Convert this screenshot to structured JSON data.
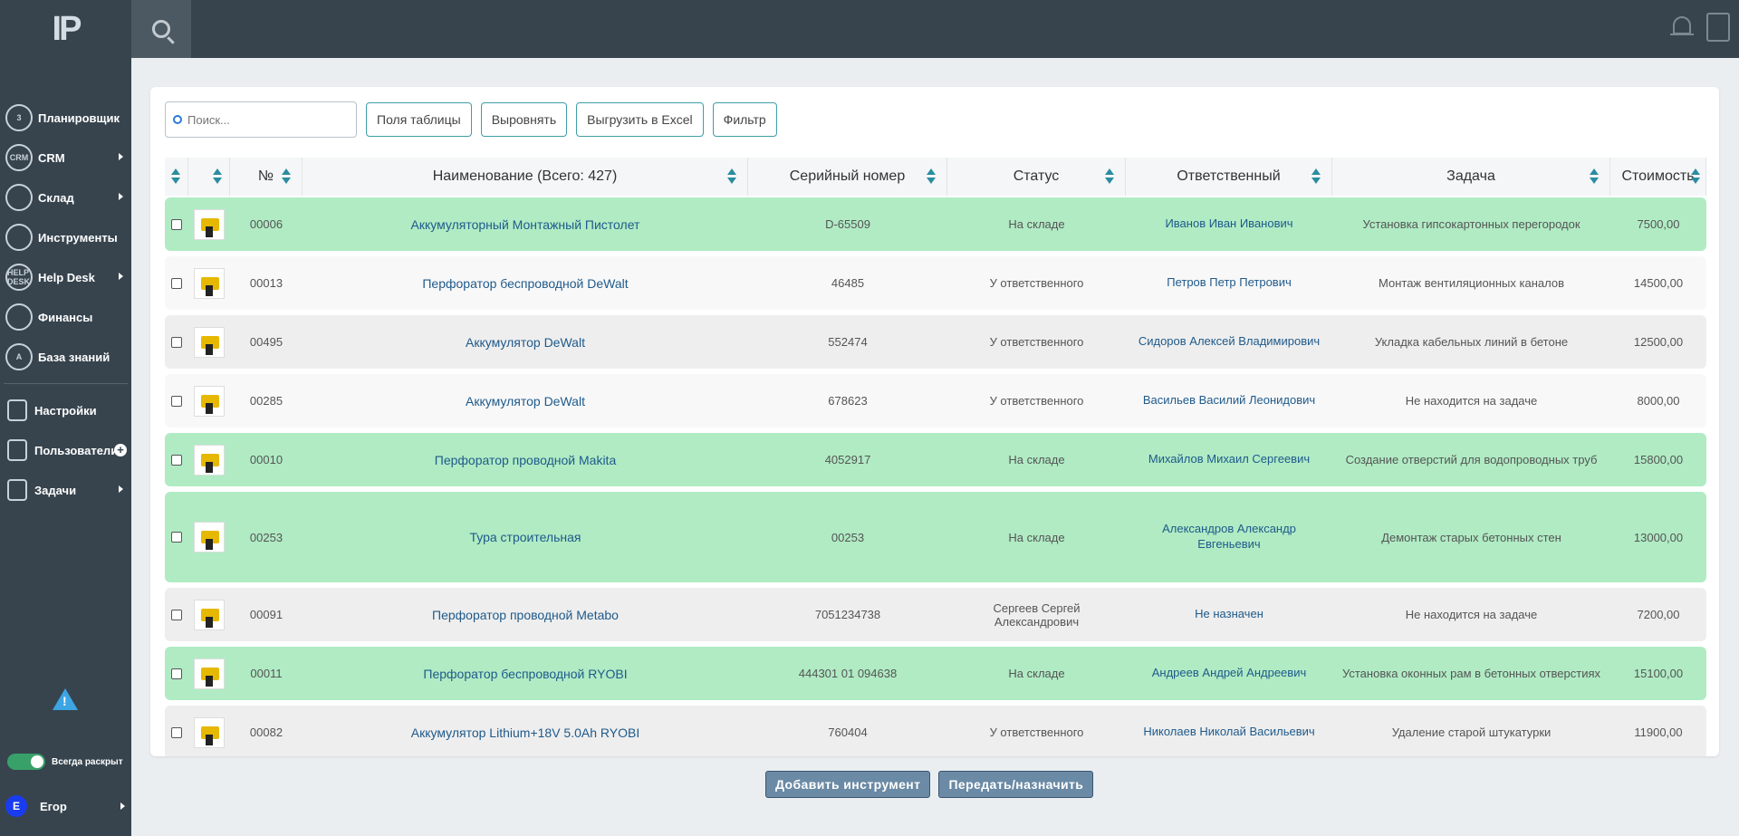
{
  "logo": "IP",
  "sidebar": {
    "items": [
      {
        "label": "Планировщик",
        "icon": "calendar-icon",
        "icon_text": "3",
        "arrow": false
      },
      {
        "label": "CRM",
        "icon": "crm-icon",
        "icon_text": "CRM",
        "arrow": true
      },
      {
        "label": "Склад",
        "icon": "warehouse-icon",
        "icon_text": "",
        "arrow": true
      },
      {
        "label": "Инструменты",
        "icon": "wrench-icon",
        "icon_text": "",
        "arrow": false
      },
      {
        "label": "Help Desk",
        "icon": "helpdesk-icon",
        "icon_text": "HELP DESK",
        "arrow": true
      },
      {
        "label": "Финансы",
        "icon": "finance-icon",
        "icon_text": "",
        "arrow": false
      },
      {
        "label": "База знаний",
        "icon": "knowledge-icon",
        "icon_text": "A",
        "arrow": false
      }
    ],
    "items2": [
      {
        "label": "Настройки",
        "icon": "gear-icon"
      },
      {
        "label": "Пользователи",
        "icon": "users-icon"
      },
      {
        "label": "Задачи",
        "icon": "tasks-icon"
      }
    ],
    "always_expand_label": "Всегда раскрыт",
    "user_initial": "Е",
    "user_name": "Егор"
  },
  "toolbar": {
    "search_placeholder": "Поиск...",
    "buttons": [
      "Поля таблицы",
      "Выровнять",
      "Выгрузить в Excel",
      "Фильтр"
    ]
  },
  "table": {
    "headers": [
      "",
      "",
      "№",
      "Наименование (Всего: 427)",
      "Серийный номер",
      "Статус",
      "Ответственный",
      "Задача",
      "Стоимость"
    ],
    "rows": [
      {
        "num": "00006",
        "name": "Аккумуляторный Монтажный Пистолет",
        "serial": "D-65509",
        "status": "На складе",
        "responsible": "Иванов Иван Иванович",
        "task": "Установка гипсокартонных перегородок",
        "cost": "7500,00",
        "color": "green"
      },
      {
        "num": "00013",
        "name": "Перфоратор беспроводной DeWalt",
        "serial": "46485",
        "status": "У ответственного",
        "responsible": "Петров Петр Петрович",
        "task": "Монтаж вентиляционных каналов",
        "cost": "14500,00",
        "color": "white"
      },
      {
        "num": "00495",
        "name": "Аккумулятор DeWalt",
        "serial": "552474",
        "status": "У ответственного",
        "responsible": "Сидоров Алексей Владимирович",
        "task": "Укладка кабельных линий в бетоне",
        "cost": "12500,00",
        "color": "gray"
      },
      {
        "num": "00285",
        "name": "Аккумулятор DeWalt",
        "serial": "678623",
        "status": "У ответственного",
        "responsible": "Васильев Василий Леонидович",
        "task": "Не находится на задаче",
        "cost": "8000,00",
        "color": "white"
      },
      {
        "num": "00010",
        "name": "Перфоратор проводной Makita",
        "serial": "4052917",
        "status": "На складе",
        "responsible": "Михайлов Михаил Сергеевич",
        "task": "Создание отверстий для водопроводных труб",
        "cost": "15800,00",
        "color": "green"
      },
      {
        "num": "00253",
        "name": "Тура строительная",
        "serial": "00253",
        "status": "На складе",
        "responsible": "Александров Александр Евгеньевич",
        "task": "Демонтаж старых бетонных стен",
        "cost": "13000,00",
        "color": "green"
      },
      {
        "num": "00091",
        "name": "Перфоратор проводной Metabo",
        "serial": "7051234738",
        "status": "Сергеев Сергей Александрович",
        "responsible": "Не назначен",
        "task": "Не находится на задаче",
        "cost": "7200,00",
        "color": "gray"
      },
      {
        "num": "00011",
        "name": "Перфоратор беспроводной RYOBI",
        "serial": "444301 01 094638",
        "status": "На складе",
        "responsible": "Андреев Андрей Андреевич",
        "task": "Установка оконных рам в бетонных отверстиях",
        "cost": "15100,00",
        "color": "green"
      },
      {
        "num": "00082",
        "name": "Аккумулятор Lithium+18V 5.0Ah RYOBI",
        "serial": "760404",
        "status": "У ответственного",
        "responsible": "Николаев Николай Васильевич",
        "task": "Удаление старой штукатурки",
        "cost": "11900,00",
        "color": "gray"
      }
    ]
  },
  "actions": {
    "add_tool": "Добавить инструмент",
    "transfer": "Передать/назначить"
  }
}
